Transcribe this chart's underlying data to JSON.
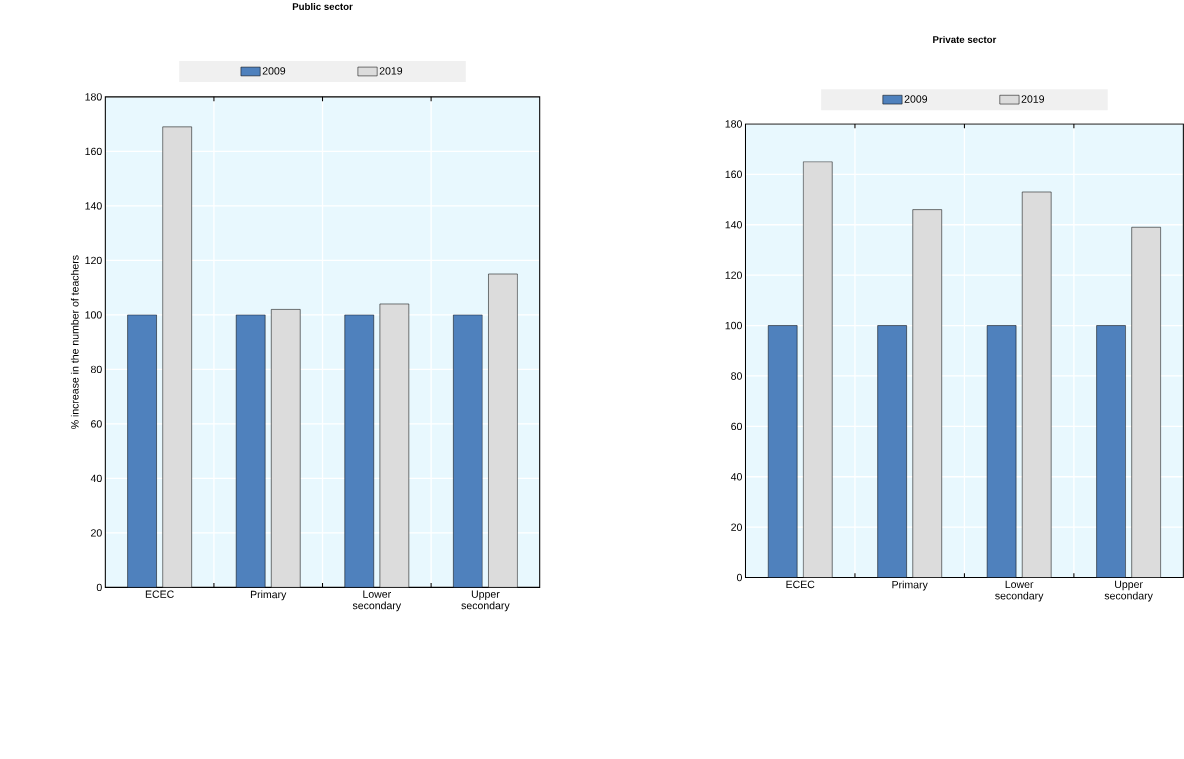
{
  "chart_data": [
    {
      "type": "bar",
      "title": "Public sector",
      "ylabel": "% increase in the number of teachers",
      "categories": [
        "ECEC",
        "Primary",
        "Lower secondary",
        "Upper secondary"
      ],
      "series": [
        {
          "name": "2009",
          "color": "#4f81bd",
          "values": [
            100,
            100,
            100,
            100
          ]
        },
        {
          "name": "2019",
          "color": "#dcdcdc",
          "values": [
            169,
            102,
            104,
            115
          ]
        }
      ],
      "ylim": [
        0,
        180
      ],
      "yticks": [
        0,
        20,
        40,
        60,
        80,
        100,
        120,
        140,
        160,
        180
      ],
      "grid": true,
      "legend": "top"
    },
    {
      "type": "bar",
      "title": "Private sector",
      "categories": [
        "ECEC",
        "Primary",
        "Lower secondary",
        "Upper secondary"
      ],
      "series": [
        {
          "name": "2009",
          "color": "#4f81bd",
          "values": [
            100,
            100,
            100,
            100
          ]
        },
        {
          "name": "2019",
          "color": "#dcdcdc",
          "values": [
            165,
            146,
            153,
            139
          ]
        }
      ],
      "ylim": [
        0,
        180
      ],
      "yticks": [
        0,
        20,
        40,
        60,
        80,
        100,
        120,
        140,
        160,
        180
      ],
      "grid": true,
      "legend": "top"
    }
  ]
}
